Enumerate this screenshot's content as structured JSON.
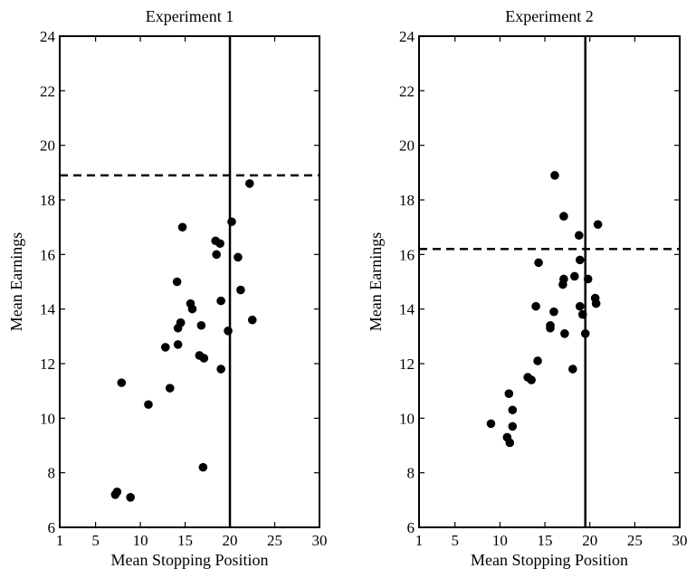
{
  "chart_data": [
    {
      "type": "scatter",
      "title": "Experiment 1",
      "xlabel": "Mean Stopping Position",
      "ylabel": "Mean Earnings",
      "xlim": [
        1,
        30
      ],
      "ylim": [
        6,
        24
      ],
      "xticks": [
        1,
        5,
        10,
        15,
        20,
        25,
        30
      ],
      "yticks": [
        6,
        8,
        10,
        12,
        14,
        16,
        18,
        20,
        22,
        24
      ],
      "grid": false,
      "reference_lines": {
        "vertical_x": 20,
        "horizontal_dashed_y": 18.9
      },
      "points": [
        {
          "x": 7.2,
          "y": 7.2
        },
        {
          "x": 7.4,
          "y": 7.3
        },
        {
          "x": 8.9,
          "y": 7.1
        },
        {
          "x": 7.9,
          "y": 11.3
        },
        {
          "x": 10.9,
          "y": 10.5
        },
        {
          "x": 13.3,
          "y": 11.1
        },
        {
          "x": 12.8,
          "y": 12.6
        },
        {
          "x": 14.2,
          "y": 12.7
        },
        {
          "x": 14.2,
          "y": 13.3
        },
        {
          "x": 14.5,
          "y": 13.5
        },
        {
          "x": 14.5,
          "y": 13.5
        },
        {
          "x": 14.1,
          "y": 15.0
        },
        {
          "x": 14.7,
          "y": 17.0
        },
        {
          "x": 15.6,
          "y": 14.2
        },
        {
          "x": 15.8,
          "y": 14.0
        },
        {
          "x": 16.6,
          "y": 12.3
        },
        {
          "x": 17.1,
          "y": 12.2
        },
        {
          "x": 16.8,
          "y": 13.4
        },
        {
          "x": 17.0,
          "y": 8.2
        },
        {
          "x": 18.4,
          "y": 16.5
        },
        {
          "x": 18.5,
          "y": 16.0
        },
        {
          "x": 18.9,
          "y": 16.4
        },
        {
          "x": 19.0,
          "y": 14.3
        },
        {
          "x": 19.0,
          "y": 11.8
        },
        {
          "x": 19.8,
          "y": 13.2
        },
        {
          "x": 20.2,
          "y": 17.2
        },
        {
          "x": 20.9,
          "y": 15.9
        },
        {
          "x": 21.2,
          "y": 14.7
        },
        {
          "x": 22.2,
          "y": 18.6
        },
        {
          "x": 22.5,
          "y": 13.6
        }
      ]
    },
    {
      "type": "scatter",
      "title": "Experiment 2",
      "xlabel": "Mean Stopping Position",
      "ylabel": "Mean Earnings",
      "xlim": [
        1,
        30
      ],
      "ylim": [
        6,
        24
      ],
      "xticks": [
        1,
        5,
        10,
        15,
        20,
        25,
        30
      ],
      "yticks": [
        6,
        8,
        10,
        12,
        14,
        16,
        18,
        20,
        22,
        24
      ],
      "grid": false,
      "reference_lines": {
        "vertical_x": 19.5,
        "horizontal_dashed_y": 16.2
      },
      "points": [
        {
          "x": 9.0,
          "y": 9.8
        },
        {
          "x": 10.8,
          "y": 9.3
        },
        {
          "x": 11.1,
          "y": 9.1
        },
        {
          "x": 11.4,
          "y": 9.7
        },
        {
          "x": 11.4,
          "y": 10.3
        },
        {
          "x": 11.0,
          "y": 10.9
        },
        {
          "x": 13.1,
          "y": 11.5
        },
        {
          "x": 13.5,
          "y": 11.4
        },
        {
          "x": 14.2,
          "y": 12.1
        },
        {
          "x": 14.0,
          "y": 14.1
        },
        {
          "x": 14.3,
          "y": 15.7
        },
        {
          "x": 15.6,
          "y": 13.3
        },
        {
          "x": 15.6,
          "y": 13.4
        },
        {
          "x": 16.0,
          "y": 13.9
        },
        {
          "x": 16.1,
          "y": 18.9
        },
        {
          "x": 17.2,
          "y": 13.1
        },
        {
          "x": 17.0,
          "y": 14.9
        },
        {
          "x": 17.1,
          "y": 15.1
        },
        {
          "x": 17.1,
          "y": 17.4
        },
        {
          "x": 18.1,
          "y": 11.8
        },
        {
          "x": 18.3,
          "y": 15.2
        },
        {
          "x": 18.8,
          "y": 16.7
        },
        {
          "x": 18.9,
          "y": 15.8
        },
        {
          "x": 18.9,
          "y": 14.1
        },
        {
          "x": 19.2,
          "y": 13.8
        },
        {
          "x": 19.5,
          "y": 13.1
        },
        {
          "x": 19.8,
          "y": 15.1
        },
        {
          "x": 20.6,
          "y": 14.4
        },
        {
          "x": 20.7,
          "y": 14.2
        },
        {
          "x": 20.9,
          "y": 17.1
        }
      ]
    }
  ]
}
